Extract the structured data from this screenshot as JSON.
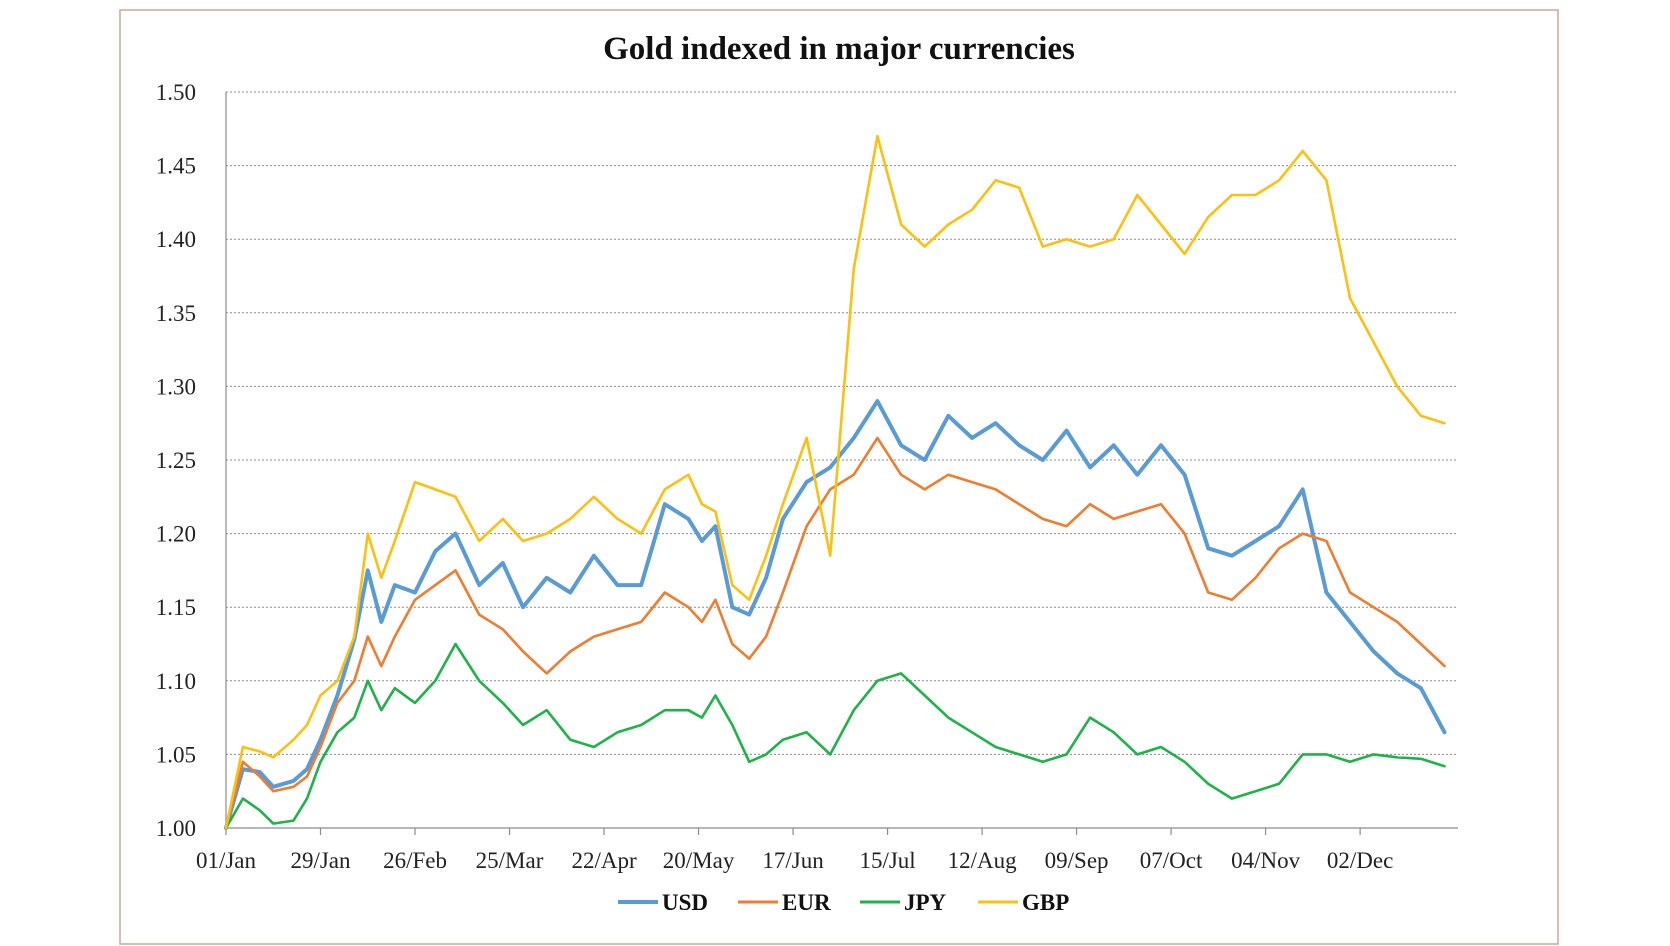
{
  "chart_data": {
    "type": "line",
    "title": "Gold indexed in major currencies",
    "xlabel": "",
    "ylabel": "",
    "ylim": [
      1.0,
      1.5
    ],
    "yticks": [
      "1.00",
      "1.05",
      "1.10",
      "1.15",
      "1.20",
      "1.25",
      "1.30",
      "1.35",
      "1.40",
      "1.45",
      "1.50"
    ],
    "xticks": [
      "01/Jan",
      "29/Jan",
      "26/Feb",
      "25/Mar",
      "22/Apr",
      "20/May",
      "17/Jun",
      "15/Jul",
      "12/Aug",
      "09/Sep",
      "07/Oct",
      "04/Nov",
      "02/Dec"
    ],
    "x_days": [
      0,
      5,
      10,
      14,
      20,
      24,
      28,
      33,
      38,
      42,
      46,
      50,
      56,
      62,
      68,
      75,
      82,
      88,
      95,
      102,
      109,
      116,
      123,
      130,
      137,
      141,
      145,
      150,
      155,
      160,
      165,
      172,
      179,
      186,
      193,
      200,
      207,
      214,
      221,
      228,
      235,
      242,
      249,
      256,
      263,
      270,
      277,
      284,
      291,
      298,
      305,
      312,
      319,
      326,
      333,
      340,
      347,
      354,
      361
    ],
    "grid": true,
    "legend_position": "bottom",
    "series": [
      {
        "name": "USD",
        "color": "#5b9bd5",
        "values": [
          1.0,
          1.04,
          1.038,
          1.028,
          1.032,
          1.04,
          1.06,
          1.09,
          1.128,
          1.175,
          1.14,
          1.165,
          1.16,
          1.188,
          1.2,
          1.165,
          1.18,
          1.15,
          1.17,
          1.16,
          1.185,
          1.165,
          1.165,
          1.22,
          1.21,
          1.195,
          1.205,
          1.15,
          1.145,
          1.17,
          1.21,
          1.235,
          1.245,
          1.265,
          1.29,
          1.26,
          1.25,
          1.28,
          1.265,
          1.275,
          1.26,
          1.25,
          1.27,
          1.245,
          1.26,
          1.24,
          1.26,
          1.24,
          1.19,
          1.185,
          1.195,
          1.205,
          1.23,
          1.16,
          1.14,
          1.12,
          1.105,
          1.095,
          1.065
        ]
      },
      {
        "name": "EUR",
        "color": "#ed7d31",
        "values": [
          1.0,
          1.045,
          1.035,
          1.025,
          1.028,
          1.035,
          1.055,
          1.085,
          1.1,
          1.13,
          1.11,
          1.13,
          1.155,
          1.165,
          1.175,
          1.145,
          1.135,
          1.12,
          1.105,
          1.12,
          1.13,
          1.135,
          1.14,
          1.16,
          1.15,
          1.14,
          1.155,
          1.125,
          1.115,
          1.13,
          1.16,
          1.205,
          1.23,
          1.24,
          1.265,
          1.24,
          1.23,
          1.24,
          1.235,
          1.23,
          1.22,
          1.21,
          1.205,
          1.22,
          1.21,
          1.215,
          1.22,
          1.2,
          1.16,
          1.155,
          1.17,
          1.19,
          1.2,
          1.195,
          1.16,
          1.15,
          1.14,
          1.125,
          1.11
        ]
      },
      {
        "name": "JPY",
        "color": "#20b14a",
        "values": [
          1.0,
          1.02,
          1.012,
          1.003,
          1.005,
          1.02,
          1.045,
          1.065,
          1.075,
          1.1,
          1.08,
          1.095,
          1.085,
          1.1,
          1.125,
          1.1,
          1.085,
          1.07,
          1.08,
          1.06,
          1.055,
          1.065,
          1.07,
          1.08,
          1.08,
          1.075,
          1.09,
          1.07,
          1.045,
          1.05,
          1.06,
          1.065,
          1.05,
          1.08,
          1.1,
          1.105,
          1.09,
          1.075,
          1.065,
          1.055,
          1.05,
          1.045,
          1.05,
          1.075,
          1.065,
          1.05,
          1.055,
          1.045,
          1.03,
          1.02,
          1.025,
          1.03,
          1.05,
          1.05,
          1.045,
          1.05,
          1.048,
          1.047,
          1.042
        ]
      },
      {
        "name": "GBP",
        "color": "#fcc013",
        "values": [
          1.0,
          1.055,
          1.052,
          1.048,
          1.06,
          1.07,
          1.09,
          1.1,
          1.13,
          1.2,
          1.17,
          1.195,
          1.235,
          1.23,
          1.225,
          1.195,
          1.21,
          1.195,
          1.2,
          1.21,
          1.225,
          1.21,
          1.2,
          1.23,
          1.24,
          1.22,
          1.215,
          1.165,
          1.155,
          1.185,
          1.22,
          1.265,
          1.185,
          1.38,
          1.47,
          1.41,
          1.395,
          1.41,
          1.42,
          1.44,
          1.435,
          1.395,
          1.4,
          1.395,
          1.4,
          1.43,
          1.41,
          1.39,
          1.415,
          1.43,
          1.43,
          1.44,
          1.46,
          1.44,
          1.36,
          1.33,
          1.3,
          1.28,
          1.275
        ]
      }
    ]
  }
}
